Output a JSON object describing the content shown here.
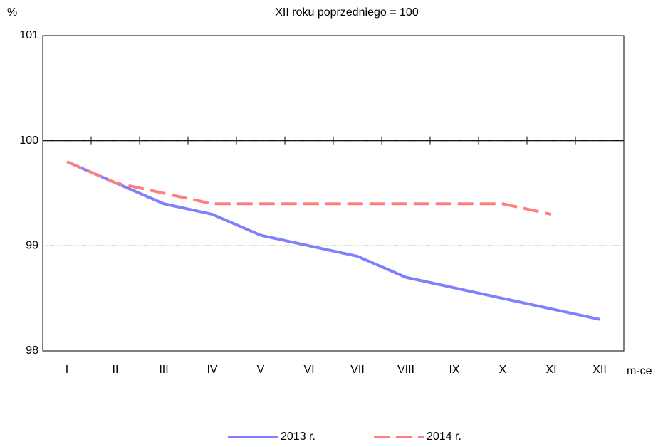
{
  "chart_data": {
    "type": "line",
    "title": "XII roku poprzedniego = 100",
    "y_label": "%",
    "x_label": "m-ce",
    "categories": [
      "I",
      "II",
      "III",
      "IV",
      "V",
      "VI",
      "VII",
      "VIII",
      "IX",
      "X",
      "XI",
      "XII"
    ],
    "series": [
      {
        "name": "2013 r.",
        "color": "#8080ff",
        "dashed": false,
        "values": [
          99.8,
          99.6,
          99.4,
          99.3,
          99.1,
          99.0,
          98.9,
          98.7,
          98.6,
          98.5,
          98.4,
          98.3
        ]
      },
      {
        "name": "2014 r.",
        "color": "#ff7f7f",
        "dashed": true,
        "values": [
          99.8,
          99.6,
          99.5,
          99.4,
          99.4,
          99.4,
          99.4,
          99.4,
          99.4,
          99.4,
          99.3,
          null
        ]
      }
    ],
    "ylim": [
      98,
      101
    ],
    "yticks": [
      101,
      100,
      99,
      98
    ],
    "grid": true,
    "xaxis_crosses": 100,
    "legend": "bottom"
  }
}
